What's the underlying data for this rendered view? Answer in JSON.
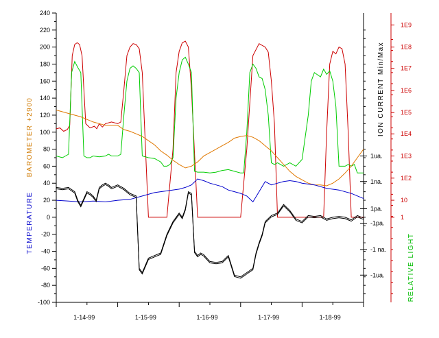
{
  "chart_data": {
    "type": "line",
    "x_axis": {
      "tick_labels": [
        "1-14-99",
        "1-15-99",
        "1-16-99",
        "1-17-99",
        "1-18-99"
      ],
      "range": [
        0,
        5
      ]
    },
    "y_axes": {
      "left": {
        "titles": [
          {
            "text": "BAROMETER  +2900",
            "color": "#d07a00"
          },
          {
            "text": "TEMPERATURE",
            "color": "#0000cc"
          }
        ],
        "range": [
          -100,
          240
        ],
        "tick_labels": [
          "240",
          "220",
          "200",
          "180",
          "160",
          "140",
          "120",
          "100",
          "80",
          "60",
          "40",
          "20",
          "0",
          "-20",
          "-40",
          "-60",
          "-80",
          "-100"
        ]
      },
      "ion": {
        "title": "ION CURRENT  Min/Max",
        "color": "#000000",
        "tick_labels": [
          {
            "text": "1ua.",
            "y": 72
          },
          {
            "text": "1na.",
            "y": 42
          },
          {
            "text": "1pa.",
            "y": 10
          },
          {
            "text": "-1pa.",
            "y": -7
          },
          {
            "text": "-1 na.",
            "y": -38
          },
          {
            "text": "-1ua.",
            "y": -68
          }
        ]
      },
      "light": {
        "title": "RELATIVE LIGHT",
        "color": "#00bb00",
        "tick_color": "#cc0000",
        "tick_labels": [
          {
            "text": "1E9",
            "y": 226
          },
          {
            "text": "1E8",
            "y": 200
          },
          {
            "text": "1E7",
            "y": 175
          },
          {
            "text": "1E6",
            "y": 149
          },
          {
            "text": "1E5",
            "y": 123
          },
          {
            "text": "1E4",
            "y": 98
          },
          {
            "text": "1E3",
            "y": 72
          },
          {
            "text": "1E2",
            "y": 46
          },
          {
            "text": "10",
            "y": 20
          },
          {
            "text": "1",
            "y": 0
          }
        ]
      }
    },
    "grid": false,
    "legend": "none",
    "series": [
      {
        "color": "#cc0000",
        "x": [
          0,
          0.06,
          0.12,
          0.18,
          0.22,
          0.26,
          0.3,
          0.34,
          0.38,
          0.42,
          0.48,
          0.55,
          0.62,
          0.66,
          0.7,
          0.75,
          0.8,
          0.9,
          1.0,
          1.05,
          1.1,
          1.15,
          1.2,
          1.25,
          1.3,
          1.35,
          1.4,
          1.5,
          1.55,
          1.6,
          1.65,
          1.7,
          1.75,
          1.8,
          1.9,
          1.95,
          2.0,
          2.05,
          2.1,
          2.15,
          2.2,
          2.3,
          2.4,
          2.5,
          2.55,
          2.6,
          2.65,
          2.7,
          2.75,
          2.8,
          2.9,
          3.0,
          3.1,
          3.2,
          3.3,
          3.4,
          3.45,
          3.5,
          3.55,
          3.6,
          3.65,
          3.7,
          3.75,
          3.8,
          3.9,
          4.0,
          4.1,
          4.2,
          4.3,
          4.35,
          4.4,
          4.45,
          4.5,
          4.55,
          4.6,
          4.65,
          4.7,
          4.75,
          4.8,
          4.85,
          4.9,
          5.0
        ],
        "y": [
          104,
          105,
          101,
          103,
          108,
          190,
          203,
          205,
          203,
          190,
          110,
          105,
          107,
          104,
          110,
          106,
          110,
          112,
          110,
          112,
          150,
          190,
          200,
          204,
          203,
          198,
          170,
          0,
          0,
          0,
          0,
          0,
          0,
          0,
          80,
          170,
          195,
          205,
          207,
          200,
          150,
          0,
          0,
          0,
          0,
          0,
          0,
          0,
          0,
          0,
          0,
          0,
          80,
          190,
          204,
          200,
          194,
          160,
          110,
          0,
          0,
          0,
          0,
          0,
          0,
          0,
          0,
          0,
          0,
          0,
          100,
          180,
          195,
          192,
          200,
          198,
          180,
          100,
          0,
          0,
          0,
          0
        ]
      },
      {
        "color": "#00cc00",
        "x": [
          0,
          0.1,
          0.2,
          0.25,
          0.3,
          0.35,
          0.4,
          0.45,
          0.5,
          0.55,
          0.6,
          0.7,
          0.8,
          0.85,
          0.9,
          0.95,
          1.0,
          1.05,
          1.1,
          1.15,
          1.2,
          1.25,
          1.3,
          1.35,
          1.4,
          1.5,
          1.6,
          1.7,
          1.75,
          1.8,
          1.85,
          1.9,
          1.95,
          2.0,
          2.05,
          2.1,
          2.15,
          2.2,
          2.25,
          2.3,
          2.4,
          2.5,
          2.6,
          2.7,
          2.8,
          2.9,
          3.0,
          3.05,
          3.1,
          3.15,
          3.2,
          3.25,
          3.3,
          3.35,
          3.4,
          3.45,
          3.5,
          3.55,
          3.6,
          3.65,
          3.7,
          3.8,
          3.9,
          4.0,
          4.1,
          4.15,
          4.2,
          4.3,
          4.35,
          4.4,
          4.45,
          4.5,
          4.55,
          4.6,
          4.65,
          4.7,
          4.75,
          4.8,
          4.85,
          4.9,
          5.0
        ],
        "y": [
          72,
          70,
          74,
          170,
          183,
          176,
          170,
          72,
          70,
          70,
          72,
          71,
          72,
          74,
          72,
          72,
          72,
          74,
          120,
          160,
          175,
          178,
          175,
          170,
          72,
          70,
          69,
          65,
          60,
          60,
          62,
          70,
          140,
          170,
          185,
          188,
          180,
          170,
          54,
          53,
          53,
          52,
          53,
          55,
          56,
          54,
          52,
          52,
          100,
          170,
          180,
          175,
          165,
          163,
          150,
          120,
          64,
          62,
          64,
          62,
          60,
          64,
          60,
          68,
          120,
          160,
          170,
          165,
          174,
          168,
          172,
          160,
          130,
          60,
          60,
          60,
          62,
          60,
          62,
          52,
          52
        ]
      },
      {
        "color": "#e07800",
        "x": [
          0,
          0.2,
          0.4,
          0.6,
          0.8,
          1.0,
          1.1,
          1.2,
          1.3,
          1.4,
          1.5,
          1.6,
          1.7,
          1.8,
          1.9,
          2.0,
          2.1,
          2.2,
          2.3,
          2.4,
          2.5,
          2.6,
          2.7,
          2.8,
          2.9,
          3.0,
          3.1,
          3.2,
          3.3,
          3.4,
          3.5,
          3.6,
          3.7,
          3.8,
          3.9,
          4.0,
          4.1,
          4.2,
          4.3,
          4.4,
          4.5,
          4.6,
          4.7,
          4.8,
          4.9,
          5.0
        ],
        "y": [
          126,
          122,
          118,
          112,
          108,
          108,
          103,
          101,
          98,
          95,
          90,
          85,
          78,
          73,
          67,
          62,
          58,
          60,
          65,
          72,
          76,
          80,
          84,
          88,
          93,
          95,
          96,
          94,
          90,
          84,
          78,
          70,
          62,
          54,
          48,
          44,
          40,
          38,
          38,
          37,
          40,
          45,
          52,
          60,
          70,
          80
        ]
      },
      {
        "color": "#0000cc",
        "x": [
          0,
          0.2,
          0.4,
          0.6,
          0.8,
          1.0,
          1.2,
          1.4,
          1.6,
          1.8,
          2.0,
          2.1,
          2.2,
          2.3,
          2.4,
          2.5,
          2.6,
          2.7,
          2.8,
          2.9,
          3.0,
          3.1,
          3.2,
          3.3,
          3.4,
          3.5,
          3.6,
          3.7,
          3.8,
          3.9,
          4.0,
          4.2,
          4.4,
          4.6,
          4.8,
          5.0
        ],
        "y": [
          20,
          19,
          18,
          19,
          18,
          20,
          21,
          25,
          29,
          31,
          33,
          35,
          38,
          45,
          43,
          40,
          38,
          36,
          32,
          30,
          28,
          25,
          18,
          30,
          42,
          38,
          40,
          42,
          43,
          42,
          40,
          38,
          34,
          32,
          28,
          22
        ]
      },
      {
        "color": "#000000",
        "x": [
          0,
          0.1,
          0.2,
          0.3,
          0.35,
          0.4,
          0.45,
          0.5,
          0.55,
          0.6,
          0.65,
          0.7,
          0.75,
          0.8,
          0.85,
          0.9,
          1.0,
          1.1,
          1.2,
          1.3,
          1.35,
          1.4,
          1.5,
          1.6,
          1.7,
          1.8,
          1.9,
          2.0,
          2.05,
          2.1,
          2.15,
          2.2,
          2.25,
          2.3,
          2.35,
          2.4,
          2.5,
          2.6,
          2.7,
          2.8,
          2.9,
          3.0,
          3.1,
          3.2,
          3.25,
          3.3,
          3.35,
          3.4,
          3.5,
          3.6,
          3.7,
          3.8,
          3.9,
          4.0,
          4.1,
          4.2,
          4.3,
          4.4,
          4.5,
          4.6,
          4.7,
          4.8,
          4.9,
          5.0
        ],
        "y": [
          35,
          34,
          35,
          30,
          20,
          14,
          22,
          30,
          28,
          25,
          20,
          35,
          38,
          40,
          38,
          35,
          38,
          34,
          28,
          25,
          -60,
          -65,
          -48,
          -45,
          -42,
          -20,
          -5,
          5,
          0,
          10,
          30,
          28,
          -40,
          -45,
          -42,
          -44,
          -52,
          -53,
          -52,
          -45,
          -68,
          -70,
          -65,
          -60,
          -42,
          -30,
          -20,
          -5,
          2,
          5,
          15,
          8,
          -2,
          -5,
          2,
          1,
          2,
          -2,
          0,
          1,
          0,
          -3,
          2,
          -1
        ]
      }
    ]
  }
}
